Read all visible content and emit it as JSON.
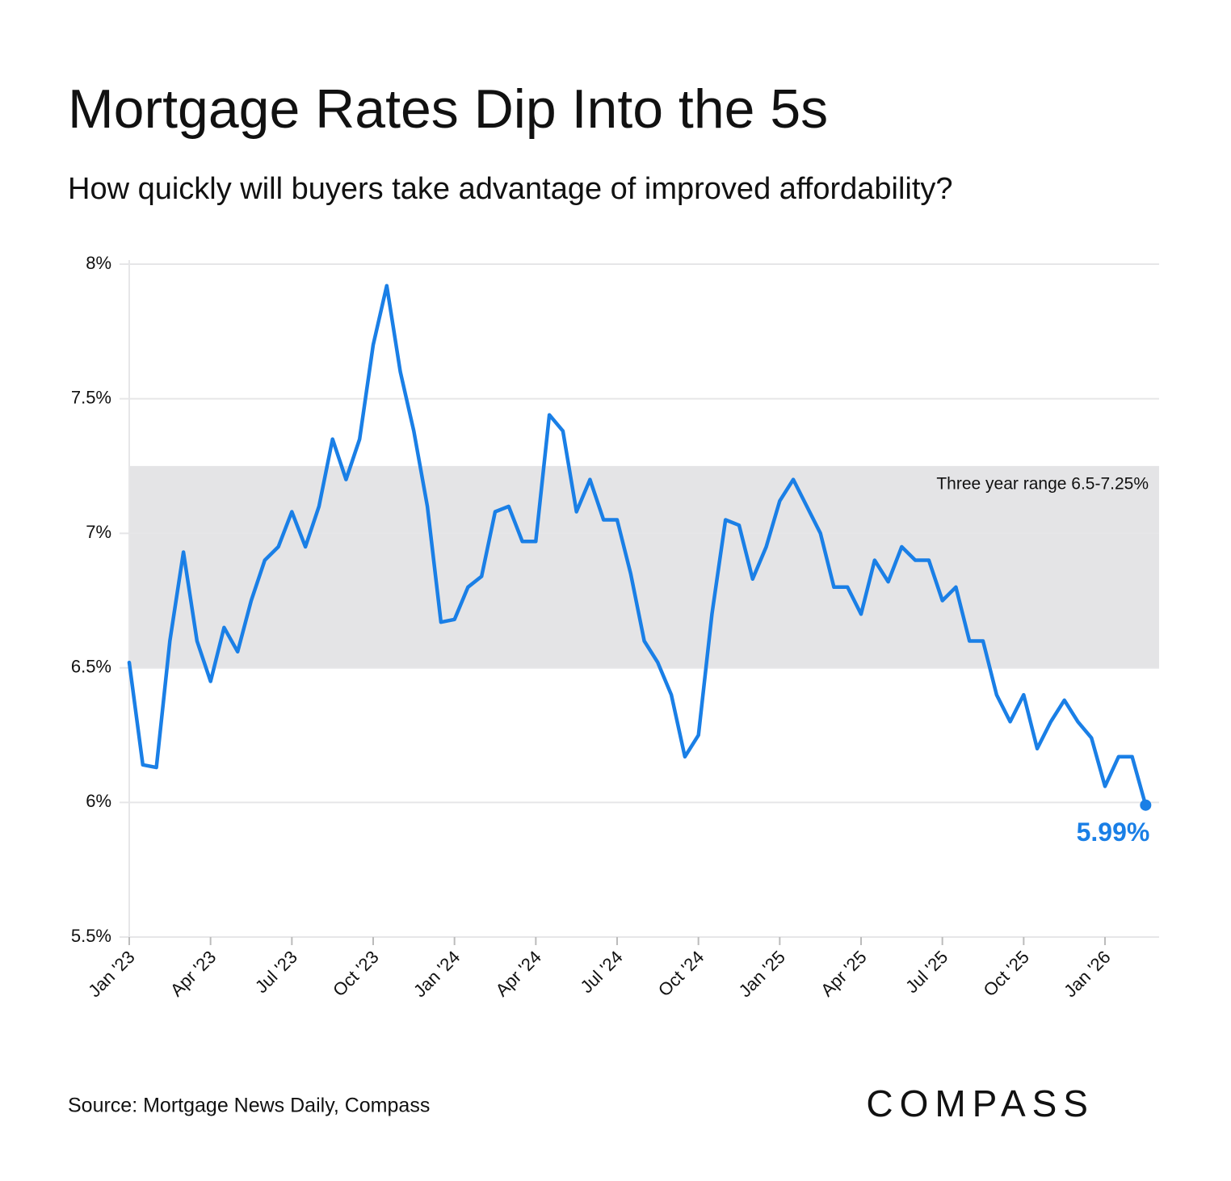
{
  "chart_data": {
    "type": "line",
    "title": "Mortgage Rates Dip Into the 5s",
    "subtitle": "How quickly will buyers take advantage of improved affordability?",
    "source": "Source: Mortgage News Daily, Compass",
    "brand": "COMPASS",
    "color": "#1a7fe6",
    "categories": [
      "Jan '23",
      null,
      null,
      null,
      null,
      null,
      "Apr '23",
      null,
      null,
      null,
      null,
      null,
      "Jul '23",
      null,
      null,
      null,
      null,
      null,
      "Oct '23",
      null,
      null,
      null,
      null,
      null,
      "Jan '24",
      null,
      null,
      null,
      null,
      null,
      "Apr '24",
      null,
      null,
      null,
      null,
      null,
      "Jul '24",
      null,
      null,
      null,
      null,
      null,
      "Oct '24",
      null,
      null,
      null,
      null,
      null,
      "Jan '25",
      null,
      null,
      null,
      null,
      null,
      "Apr '25",
      null,
      null,
      null,
      null,
      null,
      "Jul '25",
      null,
      null,
      null,
      null,
      null,
      "Oct '25",
      null,
      null,
      null,
      null,
      null,
      "Jan '26",
      null,
      null,
      null
    ],
    "values": [
      6.52,
      6.14,
      6.13,
      6.6,
      6.93,
      6.6,
      6.45,
      6.65,
      6.56,
      6.75,
      6.9,
      6.95,
      7.08,
      6.95,
      7.1,
      7.35,
      7.2,
      7.35,
      7.7,
      7.92,
      7.6,
      7.38,
      7.1,
      6.67,
      6.68,
      6.8,
      6.84,
      7.08,
      7.1,
      6.97,
      6.97,
      7.44,
      7.38,
      7.08,
      7.2,
      7.05,
      7.05,
      6.85,
      6.6,
      6.52,
      6.4,
      6.17,
      6.25,
      6.7,
      7.05,
      7.03,
      6.83,
      6.95,
      7.12,
      7.2,
      7.1,
      7.0,
      6.8,
      6.8,
      6.7,
      6.9,
      6.82,
      6.95,
      6.9,
      6.9,
      6.75,
      6.8,
      6.6,
      6.6,
      6.4,
      6.3,
      6.4,
      6.2,
      6.3,
      6.38,
      6.3,
      6.24,
      6.06,
      6.17,
      6.17,
      5.99
    ],
    "value_labels": [
      null,
      null,
      null,
      null,
      null,
      null,
      null,
      null,
      null,
      null,
      null,
      null,
      null,
      null,
      null,
      null,
      null,
      null,
      null,
      null,
      null,
      null,
      null,
      null,
      null,
      null,
      null,
      null,
      null,
      null,
      null,
      null,
      null,
      null,
      null,
      null,
      null,
      null,
      null,
      null,
      null,
      null,
      null,
      null,
      null,
      null,
      null,
      null,
      null,
      null,
      null,
      null,
      null,
      null,
      null,
      null,
      null,
      null,
      null,
      null,
      null,
      null,
      null,
      null,
      null,
      null,
      null,
      null,
      null,
      null,
      null,
      null,
      null,
      null,
      null,
      "5.99%"
    ],
    "band": {
      "from": 6.5,
      "to": 7.25,
      "label": "Three year range 6.5-7.25%",
      "color": "#e4e4e6"
    },
    "ylim": [
      5.5,
      8
    ],
    "yticks": [
      {
        "value": 5.5,
        "label": "5.5%"
      },
      {
        "value": 6,
        "label": "6%"
      },
      {
        "value": 6.5,
        "label": "6.5%"
      },
      {
        "value": 7,
        "label": "7%"
      },
      {
        "value": 7.5,
        "label": "7.5%"
      },
      {
        "value": 8,
        "label": "8%"
      }
    ],
    "grid": true
  }
}
